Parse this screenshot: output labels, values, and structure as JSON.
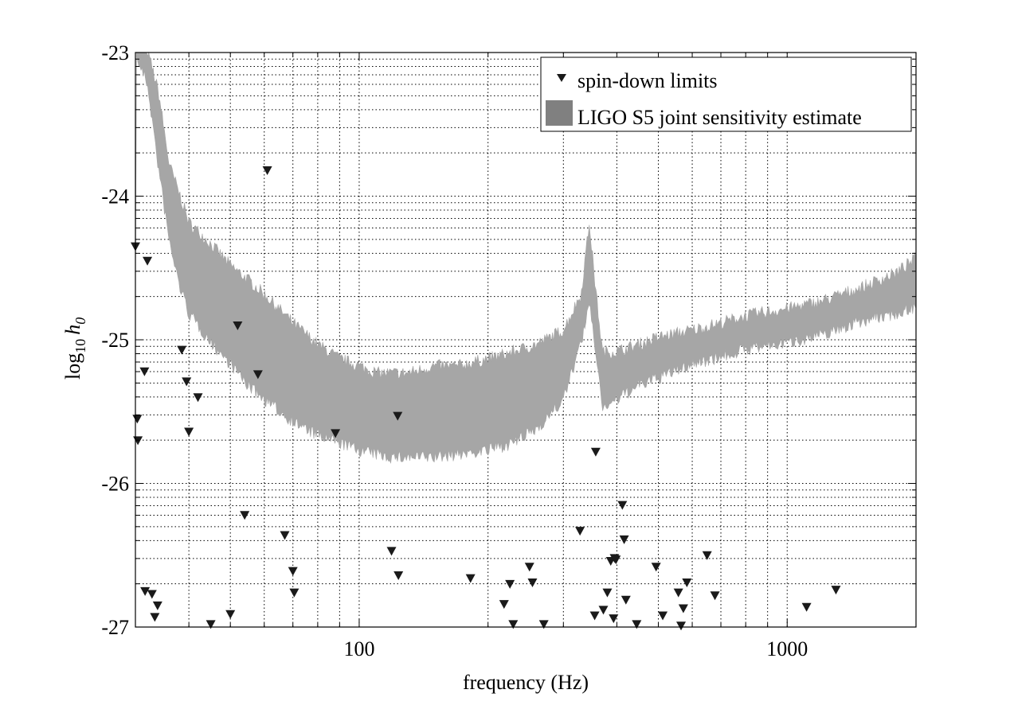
{
  "chart_data": {
    "type": "scatter",
    "xlabel": "frequency (Hz)",
    "ylabel_main": "log",
    "ylabel_sub": "10",
    "ylabel_var": "h",
    "ylabel_var_sub": "0",
    "x_scale": "log",
    "xlim": [
      30,
      2000
    ],
    "ylim": [
      -27,
      -23
    ],
    "x_ticks": [
      {
        "value": 100,
        "label": "100"
      },
      {
        "value": 1000,
        "label": "1000"
      }
    ],
    "y_ticks": [
      {
        "value": -23,
        "label": "-23"
      },
      {
        "value": -24,
        "label": "-24"
      },
      {
        "value": -25,
        "label": "-25"
      },
      {
        "value": -26,
        "label": "-26"
      },
      {
        "value": -27,
        "label": "-27"
      }
    ],
    "grid": true,
    "legend_position": "top-right",
    "legend": [
      {
        "label": "spin-down limits",
        "marker": "triangle-down"
      },
      {
        "label": "LIGO S5 joint sensitivity estimate",
        "marker": "patch"
      }
    ],
    "colors": {
      "band": "#a6a6a6",
      "legend_patch": "#808080",
      "marker": "#1a1a1a"
    },
    "sensitivity_band": {
      "name": "LIGO S5 joint sensitivity estimate",
      "freq": [
        30,
        32,
        34,
        36,
        38,
        40,
        45,
        50,
        55,
        60,
        70,
        80,
        90,
        100,
        110,
        120,
        130,
        150,
        170,
        200,
        230,
        260,
        300,
        330,
        345,
        355,
        370,
        400,
        450,
        500,
        600,
        700,
        800,
        1000,
        1200,
        1500,
        1800,
        2000
      ],
      "upper": [
        -23.0,
        -23.0,
        -23.3,
        -23.8,
        -24.0,
        -24.2,
        -24.35,
        -24.5,
        -24.6,
        -24.7,
        -24.9,
        -25.05,
        -25.15,
        -25.2,
        -25.25,
        -25.25,
        -25.25,
        -25.2,
        -25.2,
        -25.15,
        -25.1,
        -25.05,
        -24.95,
        -24.7,
        -24.2,
        -24.6,
        -25.1,
        -25.1,
        -25.05,
        -25.0,
        -24.95,
        -24.9,
        -24.85,
        -24.8,
        -24.75,
        -24.65,
        -24.55,
        -24.45
      ],
      "lower": [
        -23.0,
        -23.2,
        -23.8,
        -24.3,
        -24.6,
        -24.8,
        -25.0,
        -25.15,
        -25.3,
        -25.4,
        -25.55,
        -25.65,
        -25.7,
        -25.75,
        -25.78,
        -25.8,
        -25.8,
        -25.8,
        -25.78,
        -25.75,
        -25.7,
        -25.6,
        -25.4,
        -25.0,
        -24.75,
        -25.0,
        -25.45,
        -25.4,
        -25.3,
        -25.25,
        -25.15,
        -25.1,
        -25.05,
        -25.0,
        -24.95,
        -24.85,
        -24.8,
        -24.75
      ]
    },
    "series": [
      {
        "name": "spin-down limits",
        "points": [
          {
            "x": 30.0,
            "y": -24.35
          },
          {
            "x": 30.3,
            "y": -25.55
          },
          {
            "x": 30.4,
            "y": -25.7
          },
          {
            "x": 31.5,
            "y": -25.22
          },
          {
            "x": 31.6,
            "y": -26.75
          },
          {
            "x": 32.0,
            "y": -24.45
          },
          {
            "x": 32.8,
            "y": -26.77
          },
          {
            "x": 33.3,
            "y": -26.93
          },
          {
            "x": 33.8,
            "y": -26.85
          },
          {
            "x": 38.5,
            "y": -25.07
          },
          {
            "x": 39.5,
            "y": -25.29
          },
          {
            "x": 40.0,
            "y": -25.64
          },
          {
            "x": 42.0,
            "y": -25.4
          },
          {
            "x": 45.0,
            "y": -26.98
          },
          {
            "x": 50.0,
            "y": -26.91
          },
          {
            "x": 52.0,
            "y": -24.9
          },
          {
            "x": 54.0,
            "y": -26.22
          },
          {
            "x": 58.0,
            "y": -25.24
          },
          {
            "x": 61.0,
            "y": -23.82
          },
          {
            "x": 67.0,
            "y": -26.36
          },
          {
            "x": 70.0,
            "y": -26.61
          },
          {
            "x": 70.5,
            "y": -26.76
          },
          {
            "x": 88.0,
            "y": -25.65
          },
          {
            "x": 119.0,
            "y": -26.47
          },
          {
            "x": 123.0,
            "y": -25.53
          },
          {
            "x": 123.5,
            "y": -26.64
          },
          {
            "x": 182.0,
            "y": -26.66
          },
          {
            "x": 218.0,
            "y": -26.84
          },
          {
            "x": 225.0,
            "y": -26.7
          },
          {
            "x": 229.0,
            "y": -26.98
          },
          {
            "x": 250.0,
            "y": -26.58
          },
          {
            "x": 254.0,
            "y": -26.69
          },
          {
            "x": 270.0,
            "y": -26.98
          },
          {
            "x": 328.0,
            "y": -26.33
          },
          {
            "x": 355.0,
            "y": -26.92
          },
          {
            "x": 357.0,
            "y": -25.78
          },
          {
            "x": 372.0,
            "y": -26.88
          },
          {
            "x": 380.0,
            "y": -26.76
          },
          {
            "x": 387.0,
            "y": -26.54
          },
          {
            "x": 393.0,
            "y": -26.94
          },
          {
            "x": 395.0,
            "y": -26.52
          },
          {
            "x": 398.0,
            "y": -26.53
          },
          {
            "x": 412.0,
            "y": -26.15
          },
          {
            "x": 416.0,
            "y": -26.39
          },
          {
            "x": 420.0,
            "y": -26.81
          },
          {
            "x": 445.0,
            "y": -26.98
          },
          {
            "x": 494.0,
            "y": -26.58
          },
          {
            "x": 512.0,
            "y": -26.92
          },
          {
            "x": 557.0,
            "y": -26.76
          },
          {
            "x": 565.0,
            "y": -26.99
          },
          {
            "x": 572.0,
            "y": -26.87
          },
          {
            "x": 583.0,
            "y": -26.69
          },
          {
            "x": 650.0,
            "y": -26.5
          },
          {
            "x": 678.0,
            "y": -26.78
          },
          {
            "x": 1110.0,
            "y": -26.86
          },
          {
            "x": 1300.0,
            "y": -26.74
          }
        ]
      }
    ]
  }
}
